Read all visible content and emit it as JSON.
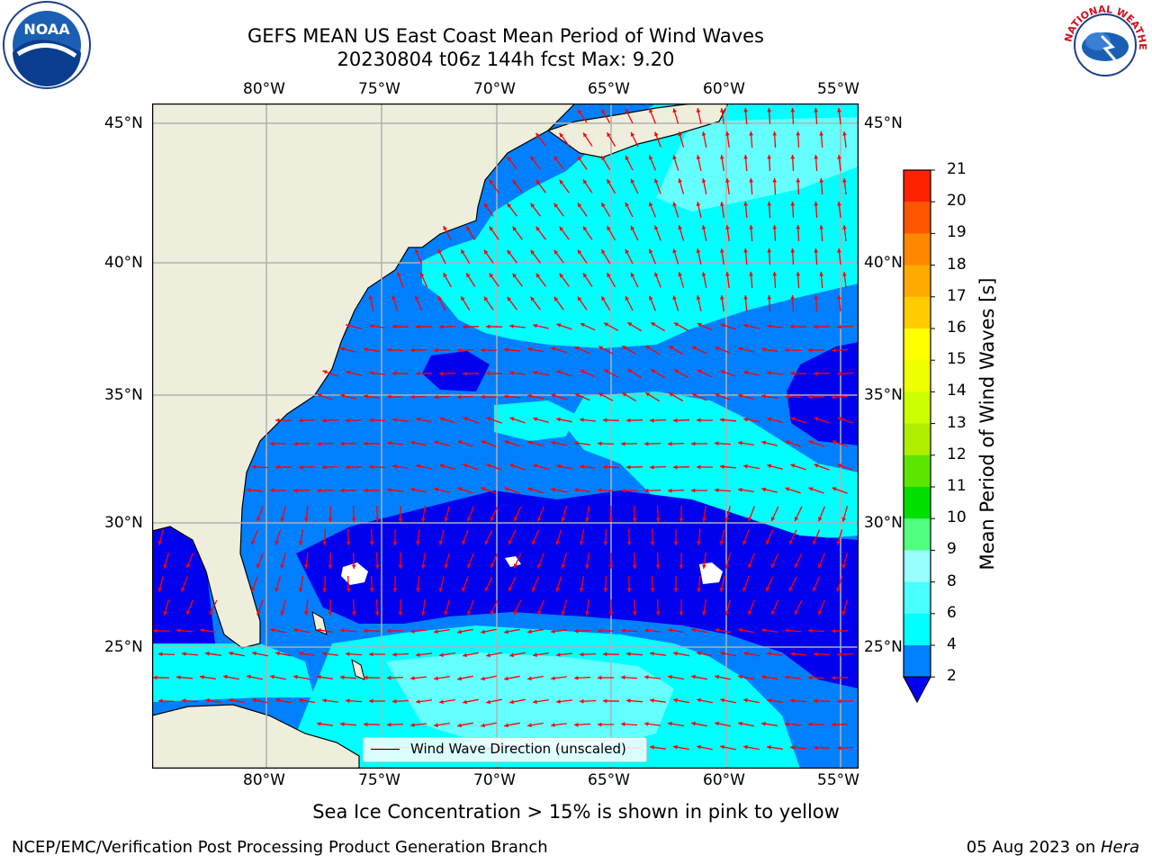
{
  "header": {
    "title_line1": "GEFS MEAN US East Coast Mean Period of Wind Waves",
    "title_line2": "20230804 t06z 144h fcst   Max: 9.20"
  },
  "logos": {
    "left": "noaa-logo",
    "left_text": "NOAA",
    "right": "nws-logo",
    "right_text": "NATIONAL WEATHER SERVICE"
  },
  "map": {
    "lon_labels": [
      "80°W",
      "75°W",
      "70°W",
      "65°W",
      "60°W",
      "55°W"
    ],
    "lat_labels": [
      "45°N",
      "40°N",
      "35°N",
      "30°N",
      "25°N"
    ],
    "legend_text": "Wind Wave Direction (unscaled)",
    "colors": {
      "land": "#efeedd",
      "dark_blue": "#0000ee",
      "mid_blue": "#0080ff",
      "cyan": "#00ffff",
      "light_cyan": "#66ffff",
      "arrow": "#ff0000",
      "grid": "#b0b0b0"
    }
  },
  "colorbar": {
    "label": "Mean Period of Wind Waves [s]",
    "ticks": [
      "2",
      "4",
      "6",
      "8",
      "9",
      "10",
      "11",
      "12",
      "13",
      "14",
      "15",
      "16",
      "17",
      "18",
      "19",
      "20",
      "21"
    ],
    "colors": [
      "#0080ff",
      "#00ffff",
      "#49ffff",
      "#99ffff",
      "#50ff80",
      "#00e000",
      "#5ce600",
      "#b0ee00",
      "#ccff00",
      "#eeff00",
      "#ffff00",
      "#ffcc00",
      "#ffaa00",
      "#ff8800",
      "#ff5500",
      "#ff2200"
    ],
    "extend_color": "#0000ee"
  },
  "footer": {
    "note": "Sea Ice Concentration > 15% is shown in pink to yellow",
    "left": "NCEP/EMC/Verification Post Processing Product Generation Branch",
    "right_date": "05 Aug 2023 on ",
    "right_host": "Hera"
  }
}
